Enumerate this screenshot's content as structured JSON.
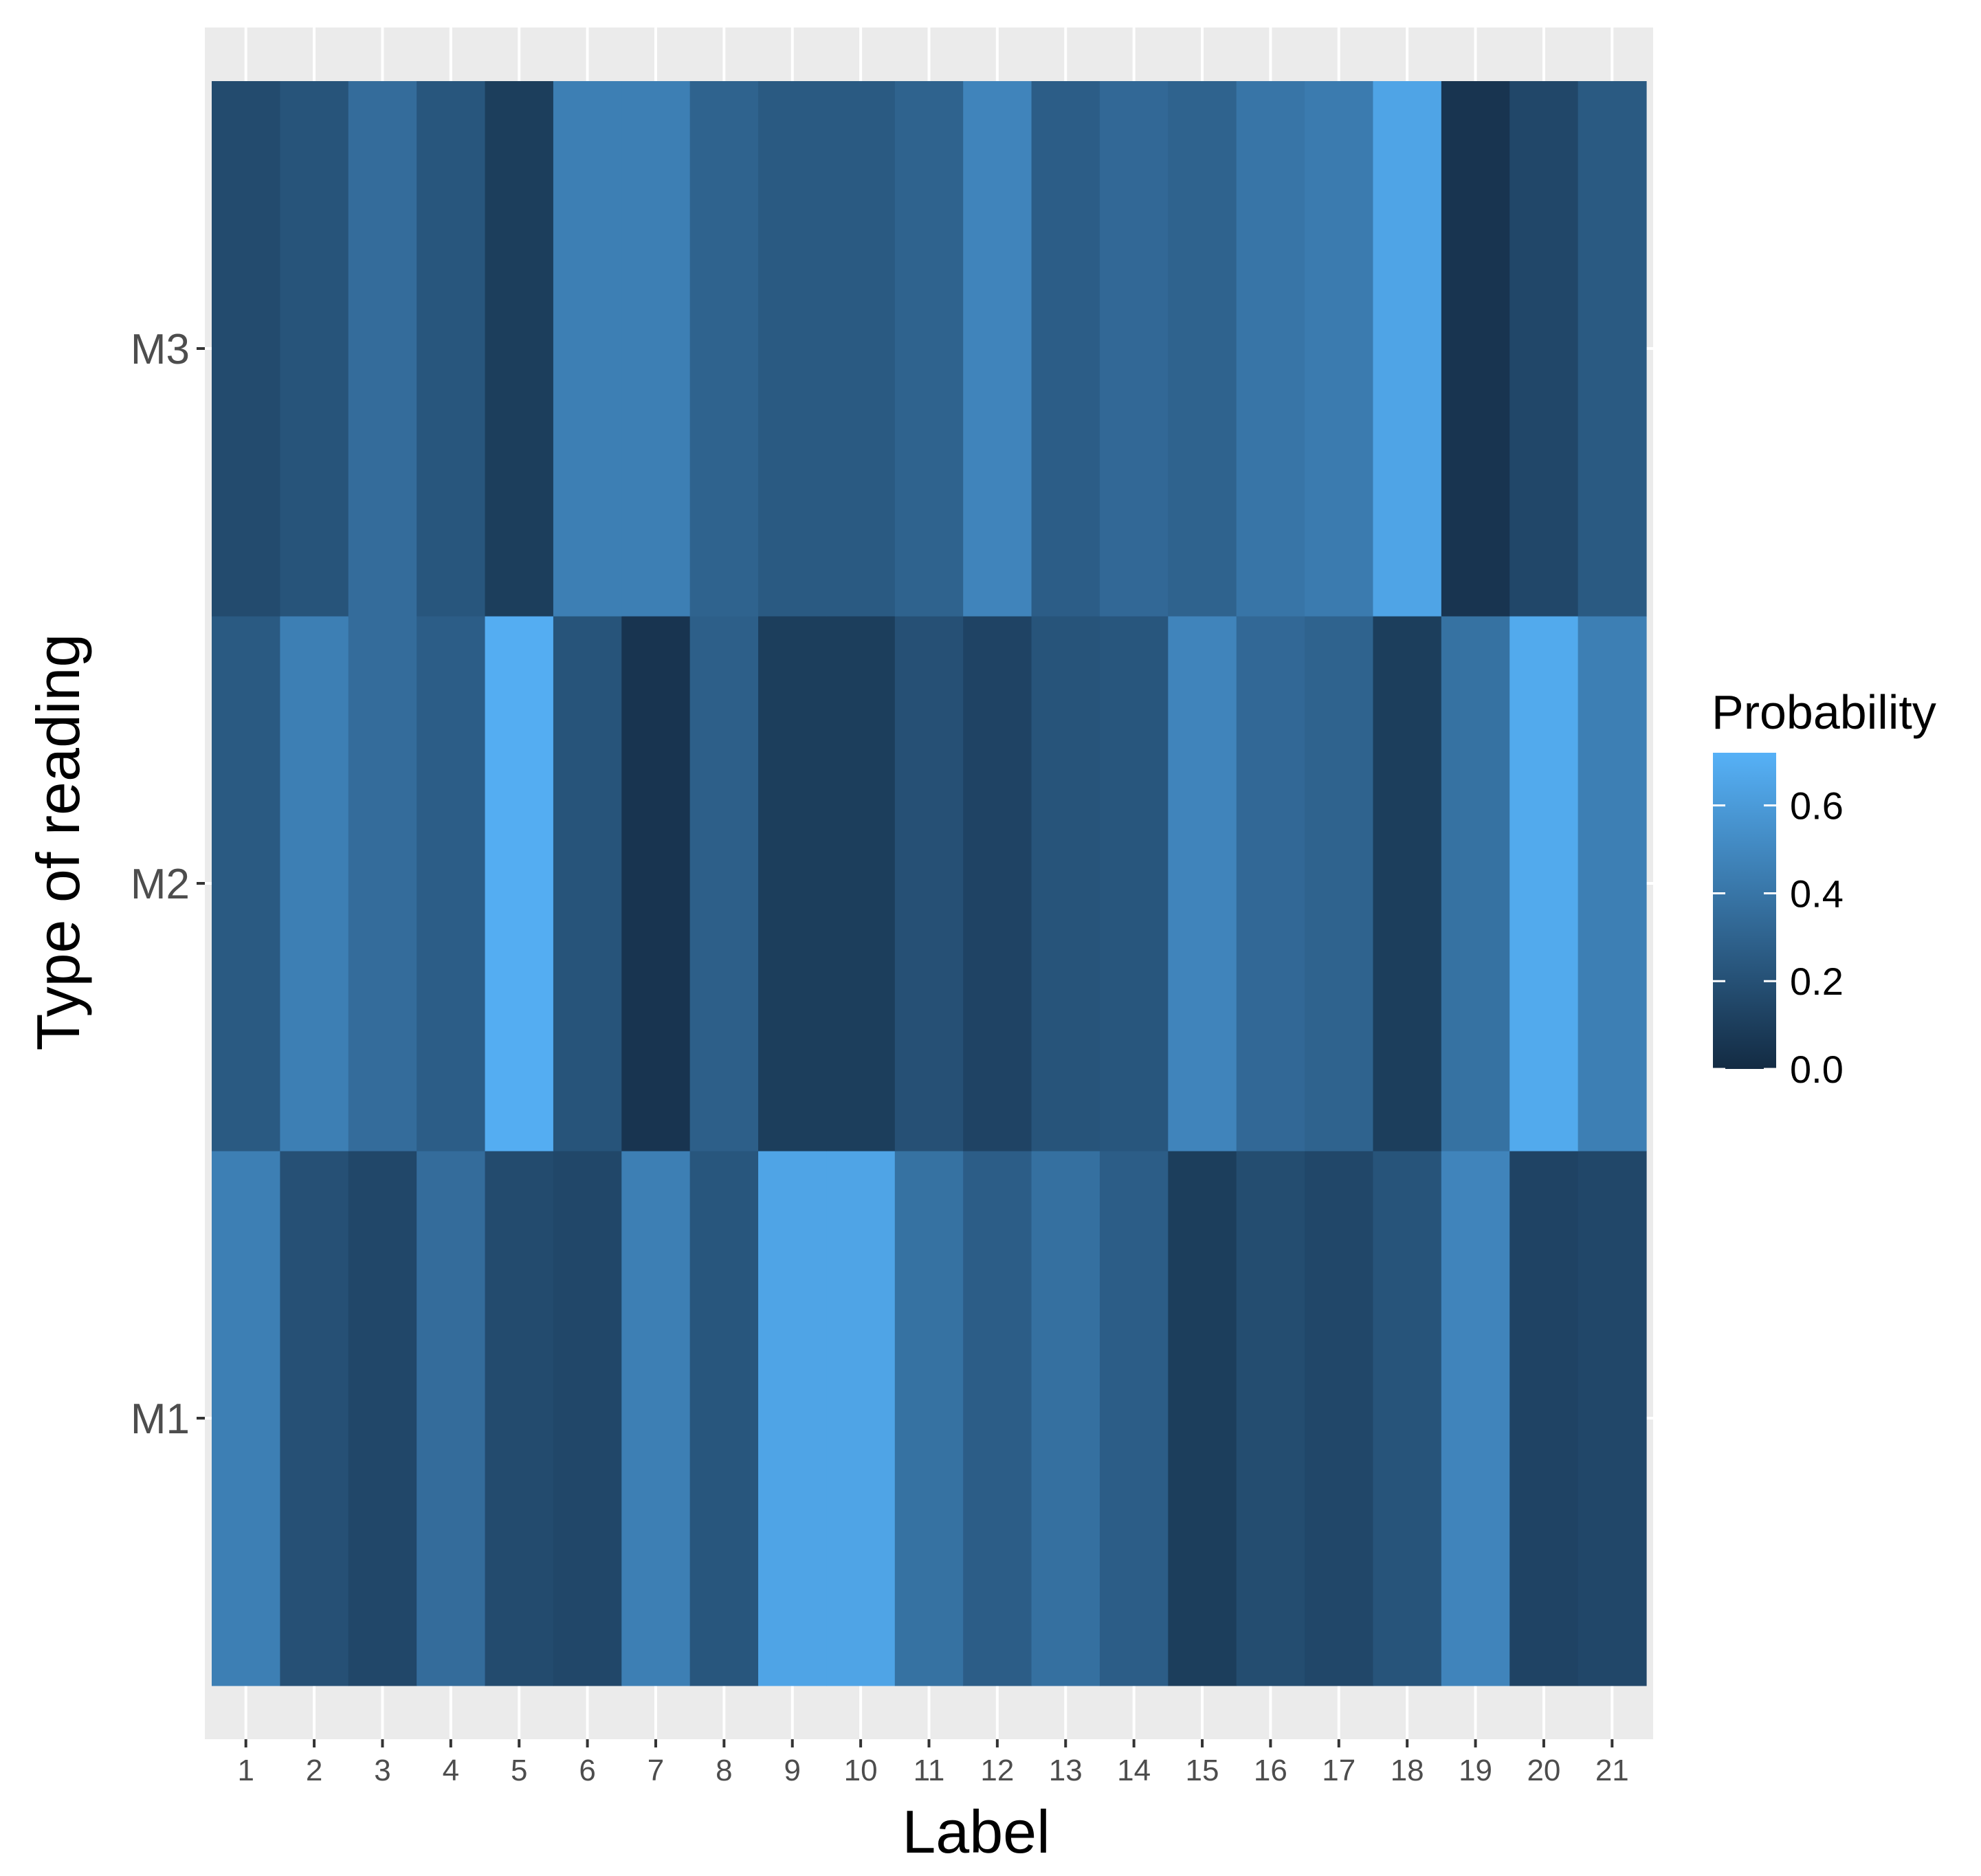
{
  "chart_data": {
    "type": "heatmap",
    "title": "",
    "xlabel": "Label",
    "ylabel": "Type of reading",
    "x_categories": [
      "1",
      "2",
      "3",
      "4",
      "5",
      "6",
      "7",
      "8",
      "9",
      "10",
      "11",
      "12",
      "13",
      "14",
      "15",
      "16",
      "17",
      "18",
      "19",
      "20",
      "21"
    ],
    "y_categories": [
      "M1",
      "M2",
      "M3"
    ],
    "values": {
      "M1": [
        0.45,
        0.2,
        0.15,
        0.35,
        0.17,
        0.15,
        0.45,
        0.23,
        0.65,
        0.65,
        0.38,
        0.27,
        0.37,
        0.27,
        0.1,
        0.18,
        0.15,
        0.22,
        0.48,
        0.13,
        0.15
      ],
      "M2": [
        0.25,
        0.45,
        0.35,
        0.27,
        0.7,
        0.22,
        0.05,
        0.28,
        0.1,
        0.1,
        0.2,
        0.13,
        0.22,
        0.23,
        0.48,
        0.33,
        0.3,
        0.1,
        0.38,
        0.68,
        0.45
      ],
      "M3": [
        0.17,
        0.22,
        0.35,
        0.23,
        0.1,
        0.45,
        0.45,
        0.3,
        0.25,
        0.25,
        0.3,
        0.48,
        0.27,
        0.33,
        0.3,
        0.4,
        0.43,
        0.65,
        0.05,
        0.15,
        0.25
      ]
    },
    "legend": {
      "title": "Probability",
      "ticks": [
        "0.6",
        "0.4",
        "0.2",
        "0.0"
      ],
      "tick_values": [
        0.6,
        0.4,
        0.2,
        0.0
      ],
      "range": [
        0.0,
        0.72
      ],
      "low_color": "#132B43",
      "high_color": "#56B1F7",
      "placement": "right"
    },
    "panel_background": "#EBEBEB",
    "grid": true
  }
}
